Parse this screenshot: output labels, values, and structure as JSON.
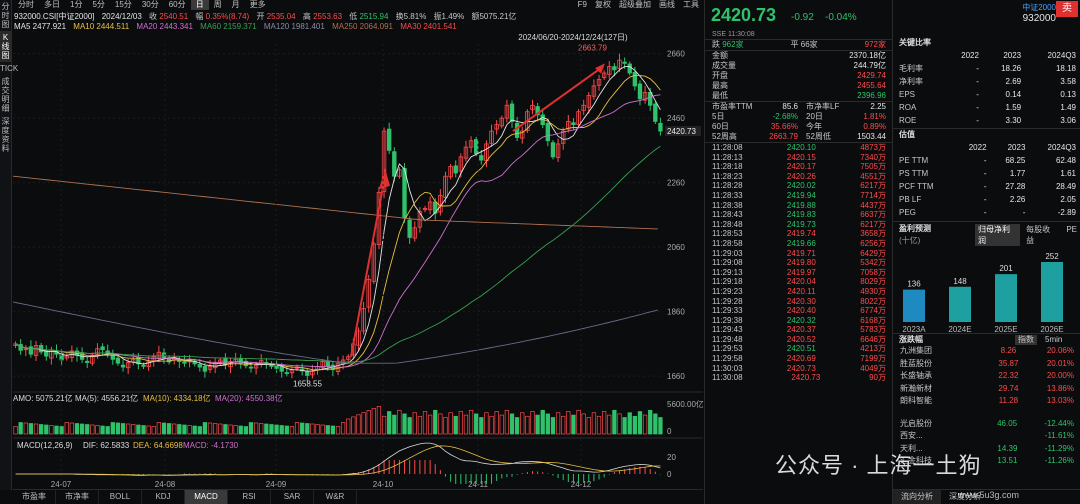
{
  "leftbar": [
    "分时图",
    "K线图",
    "TICK",
    "成交明细",
    "深度资料"
  ],
  "toolbar": {
    "items": [
      "分时",
      "多日",
      "1分",
      "5分",
      "15分",
      "30分",
      "60分",
      "日",
      "周",
      "月",
      "更多"
    ],
    "active": "日",
    "right": [
      "F9",
      "复权",
      "超级叠加",
      "画线",
      "工具"
    ]
  },
  "info1": {
    "code": "932000.CSI[中证2000]",
    "date": "2024/12/03",
    "close_l": "收",
    "close": "2540.51",
    "chg_l": "幅",
    "chg": "0.35%(8.74)",
    "open_l": "开",
    "open": "2535.04",
    "high_l": "高",
    "high": "2553.63",
    "low_l": "低",
    "low": "2515.94",
    "turn": "换5.81%",
    "amp": "振1.49%",
    "amt": "额5075.21亿"
  },
  "info2": {
    "ma5": "MA5 2477.921",
    "ma10": "MA10 2444.511",
    "ma20": "MA20 2443.341",
    "ma60": "MA60 2159.371",
    "ma120": "MA120 1981.401",
    "ma250": "MA250 2064.091",
    "ma30": "MA30 2401.541"
  },
  "colors": {
    "up": "#ff4a4a",
    "down": "#2ec26a",
    "ma5": "#e6e6e6",
    "ma10": "#e8c040",
    "ma20": "#d070d0",
    "ma60": "#3aa050",
    "ma120": "#6a6a8a",
    "ma250": "#b07050"
  },
  "chart_data": {
    "type": "candlestick",
    "date_range": "2024/06/20-2024/12/24(127日)",
    "price_ticks": [
      "2660",
      "2460",
      "2260",
      "2060",
      "1860",
      "1660"
    ],
    "price_range": [
      1620,
      2690
    ],
    "x_ticks": [
      "24-07",
      "24-08",
      "24-09",
      "24-10",
      "24-11",
      "24-12"
    ],
    "annot_high": "2663.79",
    "annot_low": "1658.55",
    "last_price": "2420.73",
    "closes": [
      1760,
      1740,
      1745,
      1728,
      1755,
      1735,
      1722,
      1740,
      1728,
      1710,
      1722,
      1738,
      1725,
      1712,
      1702,
      1725,
      1745,
      1742,
      1728,
      1712,
      1700,
      1688,
      1702,
      1712,
      1698,
      1690,
      1705,
      1720,
      1734,
      1715,
      1704,
      1715,
      1705,
      1700,
      1712,
      1698,
      1688,
      1675,
      1690,
      1702,
      1710,
      1695,
      1705,
      1712,
      1700,
      1692,
      1685,
      1694,
      1708,
      1700,
      1690,
      1684,
      1675,
      1670,
      1680,
      1688,
      1676,
      1662,
      1675,
      1690,
      1705,
      1690,
      1680,
      1700,
      1710,
      1720,
      1760,
      1800,
      1870,
      1960,
      2070,
      2230,
      2420,
      2360,
      2280,
      2300,
      2150,
      2090,
      2120,
      2170,
      2180,
      2200,
      2165,
      2220,
      2280,
      2310,
      2290,
      2340,
      2370,
      2390,
      2350,
      2330,
      2380,
      2420,
      2440,
      2460,
      2500,
      2450,
      2400,
      2420,
      2480,
      2500,
      2470,
      2440,
      2390,
      2340,
      2380,
      2420,
      2450,
      2440,
      2480,
      2500,
      2530,
      2560,
      2580,
      2600,
      2620,
      2610,
      2640,
      2630,
      2600,
      2560,
      2520,
      2540,
      2500,
      2450,
      2420
    ],
    "amo": {
      "label": "AMO: 5075.21亿",
      "ma5": "MA(5): 4556.21亿",
      "ma10": "MA(10): 4334.18亿",
      "ma20": "MA(20): 4550.38亿",
      "axis_max": "5600.00亿",
      "axis_zero": "0"
    },
    "macd": {
      "label": "MACD(12,26,9)",
      "dif": "DIF: 62.5833",
      "dea": "DEA: 64.6698",
      "macd": "MACD: -4.1730",
      "axis": [
        "20",
        "0"
      ]
    }
  },
  "bottomtabs": [
    "市盈率",
    "市净率",
    "BOLL",
    "KDJ",
    "MACD",
    "RSI",
    "SAR",
    "W&R"
  ],
  "bottom_active": "MACD",
  "quote": {
    "price": "2420.73",
    "chg": "-0.92",
    "pct": "-0.04%",
    "name": "中证2000",
    "code": "932000",
    "sell_badge": "卖",
    "sub": "SSE  11:30:08",
    "updown": {
      "down_l": "跌",
      "down": "962家",
      "flat_l": "平",
      "flat": "66家",
      "up": "972家"
    },
    "fields": [
      [
        "金额",
        "2370.18亿"
      ],
      [
        "成交量",
        "244.79亿"
      ],
      [
        "开盘",
        "2429.74"
      ],
      [
        "最高",
        "2455.64"
      ],
      [
        "最低",
        "2396.96"
      ]
    ],
    "valuation": [
      [
        "市盈率TTM",
        "85.6",
        "市净率LF",
        "2.25"
      ],
      [
        "5日",
        "-2.68%",
        "20日",
        "1.81%"
      ],
      [
        "60日",
        "35.66%",
        "今年",
        "0.89%"
      ],
      [
        "52周高",
        "2663.79",
        "52周低",
        "1503.44"
      ]
    ],
    "ticks": [
      [
        "11:28:08",
        "2420.10",
        "4873万"
      ],
      [
        "11:28:13",
        "2420.15",
        "7340万"
      ],
      [
        "11:28:18",
        "2420.17",
        "7505万"
      ],
      [
        "11:28:23",
        "2420.26",
        "4551万"
      ],
      [
        "11:28:28",
        "2420.02",
        "6217万"
      ],
      [
        "11:28:33",
        "2419.94",
        "7714万"
      ],
      [
        "11:28:38",
        "2419.88",
        "4437万"
      ],
      [
        "11:28:43",
        "2419.83",
        "6637万"
      ],
      [
        "11:28:48",
        "2419.73",
        "6217万"
      ],
      [
        "11:28:53",
        "2419.74",
        "3658万"
      ],
      [
        "11:28:58",
        "2419.66",
        "6256万"
      ],
      [
        "11:29:03",
        "2419.71",
        "6429万"
      ],
      [
        "11:29:08",
        "2419.80",
        "5342万"
      ],
      [
        "11:29:13",
        "2419.97",
        "7058万"
      ],
      [
        "11:29:18",
        "2420.04",
        "8029万"
      ],
      [
        "11:29:23",
        "2420.11",
        "4930万"
      ],
      [
        "11:29:28",
        "2420.30",
        "8022万"
      ],
      [
        "11:29:33",
        "2420.40",
        "6774万"
      ],
      [
        "11:29:38",
        "2420.32",
        "6168万"
      ],
      [
        "11:29:43",
        "2420.37",
        "5783万"
      ],
      [
        "11:29:48",
        "2420.52",
        "6646万"
      ],
      [
        "11:29:53",
        "2420.51",
        "4213万"
      ],
      [
        "11:29:58",
        "2420.69",
        "7199万"
      ],
      [
        "11:30:03",
        "2420.73",
        "4049万"
      ],
      [
        "11:30:08",
        "2420.73",
        "90万"
      ]
    ]
  },
  "fundamentals": {
    "title1": "关键比率",
    "years": [
      "2022",
      "2023",
      "2024Q3"
    ],
    "ratios": [
      [
        "毛利率",
        "-",
        "18.26",
        "18.18"
      ],
      [
        "净利率",
        "-",
        "2.69",
        "3.58"
      ],
      [
        "EPS",
        "-",
        "0.14",
        "0.13"
      ],
      [
        "ROA",
        "-",
        "1.59",
        "1.49"
      ],
      [
        "ROE",
        "-",
        "3.30",
        "3.06"
      ]
    ],
    "title2": "估值",
    "years2": [
      "2022",
      "2023",
      "2024Q3"
    ],
    "vals": [
      [
        "PE TTM",
        "-",
        "68.25",
        "62.48"
      ],
      [
        "PS TTM",
        "-",
        "1.77",
        "1.61"
      ],
      [
        "PCF TTM",
        "-",
        "27.28",
        "28.49"
      ],
      [
        "PB LF",
        "-",
        "2.26",
        "2.05"
      ],
      [
        "PEG",
        "-",
        "-",
        "-2.89"
      ]
    ],
    "forecast_title": "盈利预测",
    "forecast_unit": "(十亿)",
    "forecast_tabs": [
      "归母净利润",
      "每股收益",
      "PE"
    ],
    "forecast": {
      "labels": [
        "2023A",
        "2024E",
        "2025E",
        "2026E"
      ],
      "values": [
        136,
        148,
        201,
        252
      ]
    },
    "movers_title": "涨跌幅",
    "movers_tabs": [
      "指数",
      "5min"
    ],
    "movers": [
      [
        "九洲集团",
        "8.26",
        "20.06%"
      ],
      [
        "胜蓝股份",
        "35.87",
        "20.01%"
      ],
      [
        "长盛轴承",
        "22.32",
        "20.00%"
      ],
      [
        "新瀚新材",
        "29.74",
        "13.86%"
      ],
      [
        "朗科智能",
        "11.28",
        "13.03%"
      ]
    ],
    "losers": [
      [
        "光启股份",
        "46.05",
        "-12.44%"
      ],
      [
        "西安...",
        "",
        "-11.61%"
      ],
      [
        "天利...",
        "14.39",
        "-11.29%"
      ],
      [
        "汇金科技",
        "13.51",
        "-11.26%"
      ]
    ],
    "bottom": [
      "流向分析",
      "深度分析"
    ],
    "watermark": "公众号 · 上海一土狗",
    "watermark_url": "www.5u3g.com"
  }
}
